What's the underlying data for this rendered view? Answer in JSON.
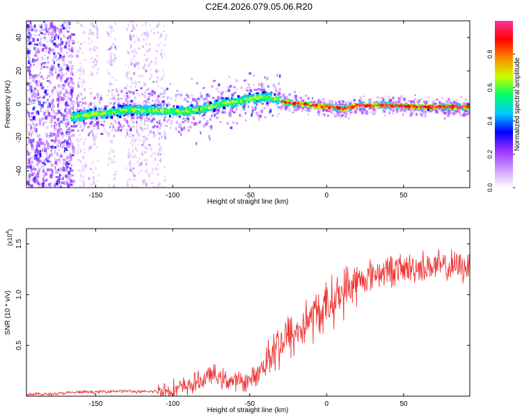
{
  "figure_title": "C2E4.2026.079.05.06.R20",
  "chart_data": [
    {
      "type": "heatmap",
      "title": "C2E4.2026.079.05.06.R20",
      "xlabel": "Height of straight line (km)",
      "ylabel": "Frequency (Hz)",
      "xlim": [
        -195,
        93
      ],
      "ylim": [
        -50,
        50
      ],
      "xticks": [
        -150,
        -100,
        -50,
        0,
        50
      ],
      "yticks": [
        -40,
        -20,
        0,
        20,
        40
      ],
      "colorbar": {
        "label": "Normalized spectral amplitude",
        "range": [
          0,
          1
        ],
        "ticks": [
          0.0,
          0.2,
          0.4,
          0.6,
          0.8
        ],
        "tick_labels": [
          "0.0",
          "0.2",
          "0.4",
          "0.6",
          "0.8"
        ],
        "colors": [
          "#ffffff",
          "#cc99ff",
          "#9933ff",
          "#0000ff",
          "#00ccff",
          "#00ff66",
          "#ccff00",
          "#ff8800",
          "#ff0000",
          "#ff3399"
        ]
      },
      "ridge": {
        "x": [
          -165,
          -150,
          -130,
          -110,
          -95,
          -80,
          -70,
          -60,
          -50,
          -42,
          -35,
          -28,
          -20,
          -10,
          0,
          10,
          20,
          40,
          60,
          80,
          92
        ],
        "frequency": [
          -7,
          -5,
          -3,
          -3,
          -4,
          -2,
          1,
          2,
          4,
          5,
          4,
          2,
          1,
          0,
          -1,
          -2,
          0,
          0,
          -1,
          -1,
          -1
        ]
      }
    },
    {
      "type": "line",
      "xlabel": "Height of straight line (km)",
      "ylabel": "SNR (10 * v/v)",
      "multiplier_label": "(x10",
      "multiplier_exp": "4",
      "multiplier_close": ")",
      "xlim": [
        -195,
        93
      ],
      "ylim": [
        0,
        1.65
      ],
      "xticks": [
        -150,
        -100,
        -50,
        0,
        50
      ],
      "yticks": [
        0.5,
        1.0,
        1.5
      ],
      "ytick_labels": [
        "0.5",
        "1.0",
        "1.5"
      ],
      "color": "#ee3333",
      "series": [
        {
          "name": "SNR",
          "x": [
            -195,
            -180,
            -170,
            -160,
            -150,
            -140,
            -130,
            -120,
            -110,
            -100,
            -90,
            -80,
            -75,
            -70,
            -60,
            -50,
            -45,
            -40,
            -35,
            -30,
            -25,
            -20,
            -15,
            -10,
            -5,
            0,
            5,
            10,
            15,
            20,
            25,
            30,
            40,
            50,
            60,
            70,
            80,
            93
          ],
          "y": [
            0.02,
            0.02,
            0.03,
            0.04,
            0.04,
            0.05,
            0.05,
            0.04,
            0.05,
            0.06,
            0.1,
            0.16,
            0.22,
            0.18,
            0.14,
            0.15,
            0.22,
            0.33,
            0.48,
            0.52,
            0.58,
            0.62,
            0.7,
            0.78,
            0.82,
            0.88,
            0.95,
            1.02,
            1.08,
            1.12,
            1.16,
            1.2,
            1.24,
            1.25,
            1.27,
            1.28,
            1.27,
            1.28
          ]
        }
      ]
    }
  ]
}
